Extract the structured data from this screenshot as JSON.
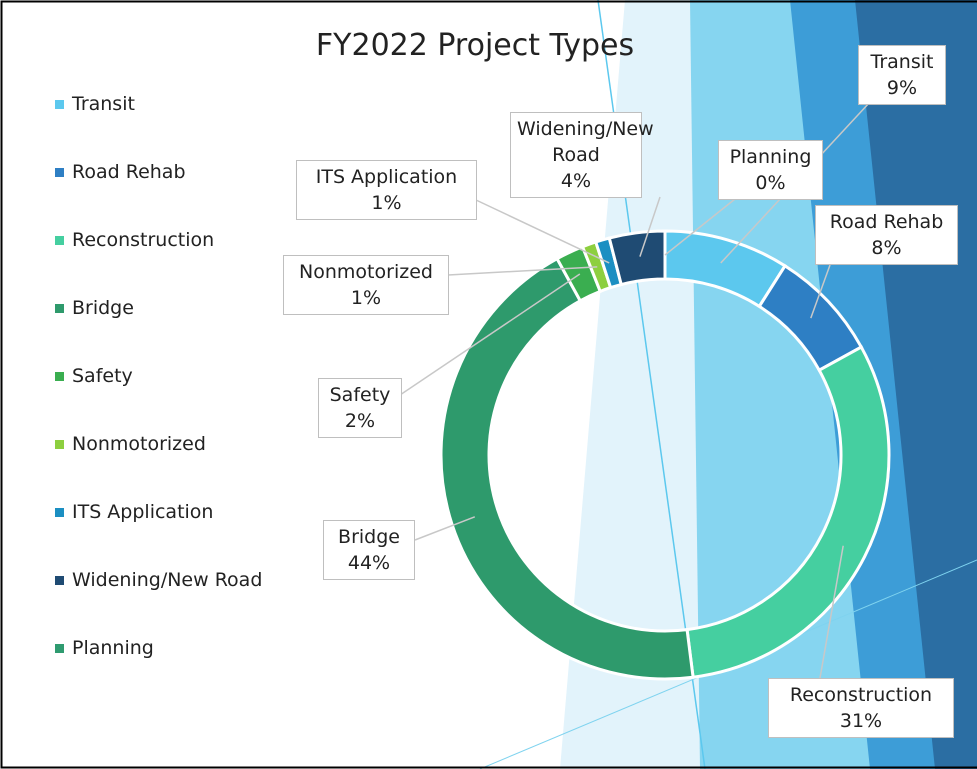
{
  "chart_data": {
    "type": "donut",
    "title": "FY2022 Project Types",
    "categories": [
      "Transit",
      "Road Rehab",
      "Reconstruction",
      "Bridge",
      "Safety",
      "Nonmotorized",
      "ITS Application",
      "Widening/New Road",
      "Planning"
    ],
    "values": [
      9,
      8,
      31,
      44,
      2,
      1,
      1,
      4,
      0
    ],
    "value_labels": [
      "9%",
      "8%",
      "31%",
      "44%",
      "2%",
      "1%",
      "1%",
      "4%",
      "0%"
    ],
    "colors": [
      "#5cc8ee",
      "#2e7fc4",
      "#45cfa0",
      "#2e9a6c",
      "#3aae50",
      "#8dcf3f",
      "#1b8fc2",
      "#1f4b73",
      "#2f9b70"
    ],
    "legend": "left"
  }
}
